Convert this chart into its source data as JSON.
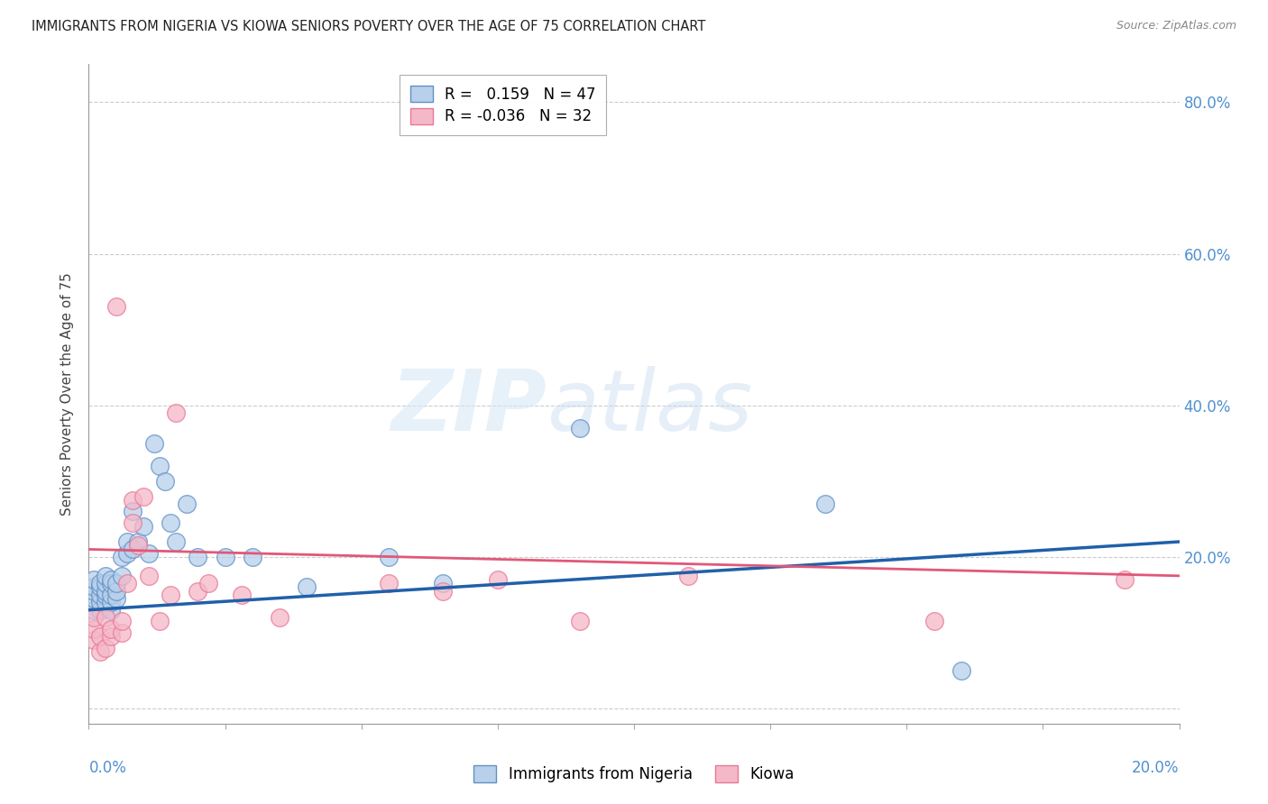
{
  "title": "IMMIGRANTS FROM NIGERIA VS KIOWA SENIORS POVERTY OVER THE AGE OF 75 CORRELATION CHART",
  "source": "Source: ZipAtlas.com",
  "ylabel": "Seniors Poverty Over the Age of 75",
  "xmin": 0.0,
  "xmax": 0.2,
  "ymin": -0.02,
  "ymax": 0.85,
  "legend_blue_r": "0.159",
  "legend_blue_n": "47",
  "legend_pink_r": "-0.036",
  "legend_pink_n": "32",
  "legend_blue_label": "Immigrants from Nigeria",
  "legend_pink_label": "Kiowa",
  "blue_fill": "#b8d0ea",
  "pink_fill": "#f5b8c8",
  "blue_edge": "#6090c8",
  "pink_edge": "#e87898",
  "blue_line": "#2060a8",
  "pink_line": "#e05878",
  "watermark_zip": "ZIP",
  "watermark_atlas": "atlas",
  "right_tick_color": "#5090d0",
  "blue_x": [
    0.001,
    0.001,
    0.001,
    0.001,
    0.001,
    0.002,
    0.002,
    0.002,
    0.002,
    0.002,
    0.003,
    0.003,
    0.003,
    0.003,
    0.003,
    0.004,
    0.004,
    0.004,
    0.004,
    0.004,
    0.005,
    0.005,
    0.005,
    0.006,
    0.006,
    0.007,
    0.007,
    0.008,
    0.008,
    0.009,
    0.01,
    0.011,
    0.012,
    0.013,
    0.014,
    0.015,
    0.016,
    0.018,
    0.02,
    0.025,
    0.03,
    0.04,
    0.055,
    0.065,
    0.09,
    0.135,
    0.16
  ],
  "blue_y": [
    0.13,
    0.145,
    0.155,
    0.16,
    0.17,
    0.13,
    0.14,
    0.15,
    0.16,
    0.165,
    0.14,
    0.15,
    0.155,
    0.165,
    0.175,
    0.13,
    0.14,
    0.15,
    0.165,
    0.17,
    0.145,
    0.155,
    0.165,
    0.175,
    0.2,
    0.205,
    0.22,
    0.21,
    0.26,
    0.22,
    0.24,
    0.205,
    0.35,
    0.32,
    0.3,
    0.245,
    0.22,
    0.27,
    0.2,
    0.2,
    0.2,
    0.16,
    0.2,
    0.165,
    0.37,
    0.27,
    0.05
  ],
  "pink_x": [
    0.001,
    0.001,
    0.001,
    0.002,
    0.002,
    0.003,
    0.003,
    0.004,
    0.004,
    0.005,
    0.006,
    0.006,
    0.007,
    0.008,
    0.008,
    0.009,
    0.01,
    0.011,
    0.013,
    0.015,
    0.016,
    0.02,
    0.022,
    0.028,
    0.035,
    0.055,
    0.065,
    0.075,
    0.09,
    0.11,
    0.155,
    0.19
  ],
  "pink_y": [
    0.09,
    0.105,
    0.12,
    0.075,
    0.095,
    0.08,
    0.12,
    0.095,
    0.105,
    0.53,
    0.1,
    0.115,
    0.165,
    0.245,
    0.275,
    0.215,
    0.28,
    0.175,
    0.115,
    0.15,
    0.39,
    0.155,
    0.165,
    0.15,
    0.12,
    0.165,
    0.155,
    0.17,
    0.115,
    0.175,
    0.115,
    0.17
  ],
  "blue_trend_x": [
    0.0,
    0.2
  ],
  "blue_trend_y": [
    0.13,
    0.22
  ],
  "pink_trend_x": [
    0.0,
    0.2
  ],
  "pink_trend_y": [
    0.21,
    0.175
  ]
}
